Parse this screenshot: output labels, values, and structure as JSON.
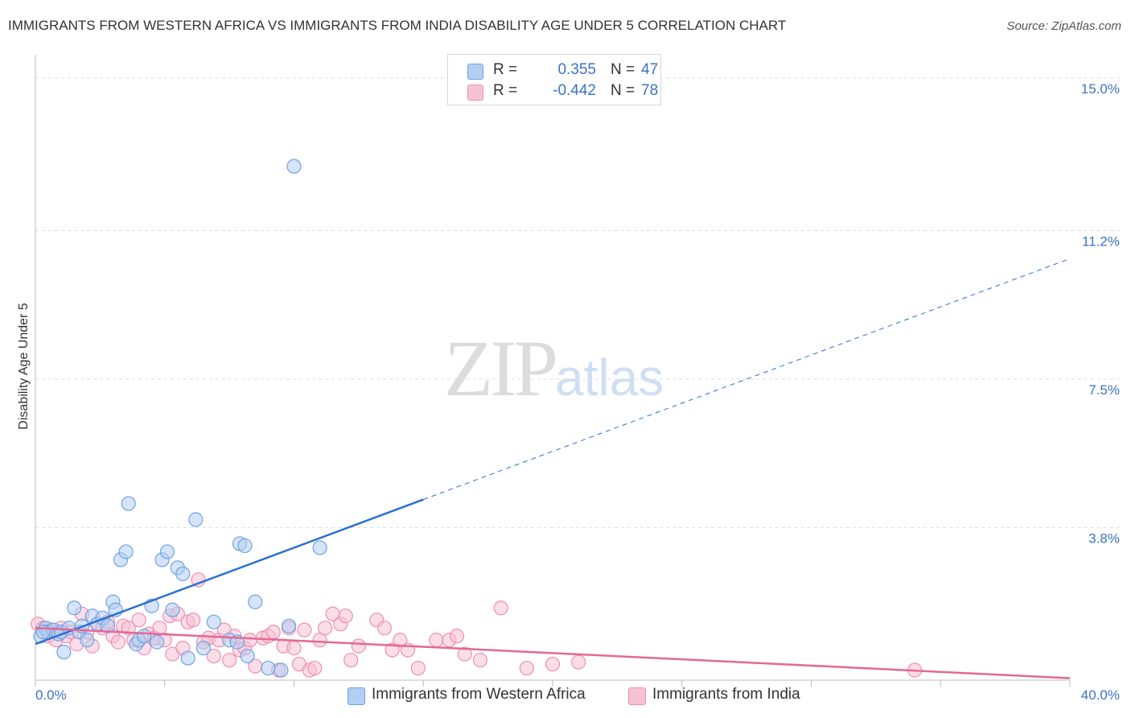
{
  "title": "IMMIGRANTS FROM WESTERN AFRICA VS IMMIGRANTS FROM INDIA DISABILITY AGE UNDER 5 CORRELATION CHART",
  "source": "Source: ZipAtlas.com",
  "watermark": {
    "zip": "ZIP",
    "atlas": "atlas"
  },
  "colors": {
    "blue": "#6fa3e4",
    "blue_fill": "#b3cef3",
    "blue_line": "#2b6fd1",
    "pink": "#ef8fb0",
    "pink_fill": "#f7c1d4",
    "pink_line": "#e46894",
    "grid": "#dddddd",
    "label": "#3b72c9"
  },
  "legend": {
    "rows": [
      {
        "r_label": "R =",
        "r_value": "0.355",
        "n_label": "N =",
        "n_value": "47"
      },
      {
        "r_label": "R =",
        "r_value": "-0.442",
        "n_label": "N =",
        "n_value": "78"
      }
    ]
  },
  "bottom_legend": {
    "series1": "Immigrants from Western Africa",
    "series2": "Immigrants from India"
  },
  "chart_data": {
    "type": "scatter",
    "title": "IMMIGRANTS FROM WESTERN AFRICA VS IMMIGRANTS FROM INDIA DISABILITY AGE UNDER 5 CORRELATION CHART",
    "xlabel": "",
    "ylabel": "Disability Age Under 5",
    "xlim": [
      0,
      40
    ],
    "ylim": [
      0,
      15.5
    ],
    "x_tick_labels": [
      "0.0%",
      "40.0%"
    ],
    "y_ticks": [
      3.8,
      7.5,
      11.2,
      15.0
    ],
    "y_tick_labels": [
      "3.8%",
      "7.5%",
      "11.2%",
      "15.0%"
    ],
    "grid": true,
    "series": [
      {
        "name": "Immigrants from Western Africa",
        "R": 0.355,
        "N": 47,
        "trend": {
          "x0": 0,
          "y0": 0.9,
          "x_solid_end": 15,
          "y_solid_end": 4.5,
          "x1": 40,
          "y1": 10.5
        },
        "points": [
          [
            0.2,
            1.1
          ],
          [
            0.4,
            1.3
          ],
          [
            0.5,
            1.2
          ],
          [
            0.7,
            1.25
          ],
          [
            0.9,
            1.15
          ],
          [
            1.0,
            1.2
          ],
          [
            1.1,
            0.7
          ],
          [
            1.3,
            1.3
          ],
          [
            1.5,
            1.8
          ],
          [
            1.7,
            1.2
          ],
          [
            1.8,
            1.35
          ],
          [
            2.0,
            1.0
          ],
          [
            2.2,
            1.6
          ],
          [
            2.4,
            1.4
          ],
          [
            2.6,
            1.55
          ],
          [
            2.8,
            1.35
          ],
          [
            3.0,
            1.95
          ],
          [
            3.1,
            1.75
          ],
          [
            3.3,
            3.0
          ],
          [
            3.5,
            3.2
          ],
          [
            3.6,
            4.4
          ],
          [
            3.9,
            0.9
          ],
          [
            4.0,
            1.0
          ],
          [
            4.2,
            1.1
          ],
          [
            4.5,
            1.85
          ],
          [
            4.7,
            0.95
          ],
          [
            4.9,
            3.0
          ],
          [
            5.1,
            3.2
          ],
          [
            5.3,
            1.75
          ],
          [
            5.5,
            2.8
          ],
          [
            5.7,
            2.65
          ],
          [
            5.9,
            0.55
          ],
          [
            6.2,
            4.0
          ],
          [
            6.5,
            0.8
          ],
          [
            6.9,
            1.45
          ],
          [
            7.5,
            1.0
          ],
          [
            7.8,
            0.95
          ],
          [
            8.2,
            0.6
          ],
          [
            7.9,
            3.4
          ],
          [
            8.1,
            3.35
          ],
          [
            8.5,
            1.95
          ],
          [
            9.0,
            0.3
          ],
          [
            9.5,
            0.25
          ],
          [
            9.8,
            1.35
          ],
          [
            10.0,
            12.8
          ],
          [
            11.0,
            3.3
          ],
          [
            0.3,
            1.2
          ]
        ]
      },
      {
        "name": "Immigrants from India",
        "R": -0.442,
        "N": 78,
        "trend": {
          "x0": 0,
          "y0": 1.3,
          "x1": 40,
          "y1": 0.05
        },
        "points": [
          [
            0.1,
            1.4
          ],
          [
            0.3,
            1.3
          ],
          [
            0.5,
            1.1
          ],
          [
            0.6,
            1.25
          ],
          [
            0.8,
            1.0
          ],
          [
            1.0,
            1.3
          ],
          [
            1.2,
            1.1
          ],
          [
            1.4,
            1.2
          ],
          [
            1.6,
            0.9
          ],
          [
            1.8,
            1.65
          ],
          [
            2.0,
            1.2
          ],
          [
            2.2,
            0.85
          ],
          [
            2.4,
            1.4
          ],
          [
            2.6,
            1.3
          ],
          [
            2.8,
            1.45
          ],
          [
            3.0,
            1.1
          ],
          [
            3.2,
            0.95
          ],
          [
            3.4,
            1.35
          ],
          [
            3.6,
            1.3
          ],
          [
            3.8,
            1.0
          ],
          [
            4.0,
            1.5
          ],
          [
            4.2,
            0.8
          ],
          [
            4.4,
            1.15
          ],
          [
            4.6,
            1.05
          ],
          [
            4.8,
            1.3
          ],
          [
            5.0,
            1.0
          ],
          [
            5.2,
            1.6
          ],
          [
            5.3,
            0.65
          ],
          [
            5.5,
            1.65
          ],
          [
            5.7,
            0.8
          ],
          [
            5.9,
            1.45
          ],
          [
            6.1,
            1.5
          ],
          [
            6.3,
            2.5
          ],
          [
            6.5,
            0.95
          ],
          [
            6.7,
            1.05
          ],
          [
            6.9,
            0.6
          ],
          [
            7.1,
            1.0
          ],
          [
            7.3,
            1.25
          ],
          [
            7.5,
            0.5
          ],
          [
            7.7,
            1.1
          ],
          [
            7.9,
            0.75
          ],
          [
            8.1,
            0.8
          ],
          [
            8.3,
            1.0
          ],
          [
            8.5,
            0.35
          ],
          [
            8.8,
            1.05
          ],
          [
            9.0,
            1.1
          ],
          [
            9.2,
            1.2
          ],
          [
            9.4,
            0.25
          ],
          [
            9.6,
            0.85
          ],
          [
            9.8,
            1.3
          ],
          [
            10.0,
            0.8
          ],
          [
            10.2,
            0.4
          ],
          [
            10.4,
            1.25
          ],
          [
            10.6,
            0.25
          ],
          [
            10.8,
            0.3
          ],
          [
            11.0,
            1.0
          ],
          [
            11.2,
            1.3
          ],
          [
            11.5,
            1.65
          ],
          [
            11.8,
            1.4
          ],
          [
            12.0,
            1.6
          ],
          [
            12.2,
            0.5
          ],
          [
            12.5,
            0.85
          ],
          [
            13.2,
            1.5
          ],
          [
            13.5,
            1.3
          ],
          [
            13.8,
            0.75
          ],
          [
            14.1,
            1.0
          ],
          [
            14.4,
            0.75
          ],
          [
            14.8,
            0.3
          ],
          [
            15.5,
            1.0
          ],
          [
            16.0,
            1.0
          ],
          [
            16.3,
            1.1
          ],
          [
            16.6,
            0.65
          ],
          [
            17.2,
            0.5
          ],
          [
            18.0,
            1.8
          ],
          [
            19.0,
            0.3
          ],
          [
            20.0,
            0.4
          ],
          [
            21.0,
            0.45
          ],
          [
            34.0,
            0.25
          ]
        ]
      }
    ]
  }
}
